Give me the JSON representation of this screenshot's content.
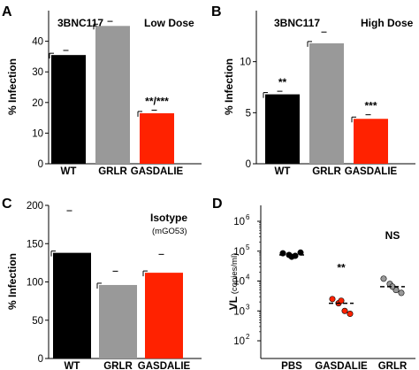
{
  "chart_data": [
    {
      "panel": "A",
      "type": "bar",
      "title": "3BNC117",
      "subtitle": "Low Dose",
      "ylabel": "% Infection",
      "ylim": [
        0,
        50
      ],
      "yticks": [
        "0",
        "10",
        "20",
        "30",
        "40"
      ],
      "categories": [
        "WT",
        "GRLR",
        "GASDALIE"
      ],
      "values": [
        35.5,
        45,
        16.5
      ],
      "errors": [
        1.5,
        1.5,
        1
      ],
      "colors": [
        "#000000",
        "#999999",
        "#ff2200"
      ],
      "annotations": [
        "",
        "",
        "**/***"
      ]
    },
    {
      "panel": "B",
      "type": "bar",
      "title": "3BNC117",
      "subtitle": "High Dose",
      "ylabel": "% Infection",
      "ylim": [
        0,
        15
      ],
      "yticks": [
        "0",
        "5",
        "10"
      ],
      "categories": [
        "WT",
        "GRLR",
        "GASDALIE"
      ],
      "values": [
        6.8,
        11.8,
        4.4
      ],
      "errors": [
        0.3,
        1.1,
        0.4
      ],
      "colors": [
        "#000000",
        "#999999",
        "#ff2200"
      ],
      "annotations": [
        "**",
        "",
        "***"
      ]
    },
    {
      "panel": "C",
      "type": "bar",
      "title": "Isotype",
      "subtitle": "(mGO53)",
      "ylabel": "% Infection",
      "ylim": [
        0,
        200
      ],
      "yticks": [
        "0",
        "50",
        "100",
        "150",
        "200"
      ],
      "categories": [
        "WT",
        "GRLR",
        "GASDALIE"
      ],
      "values": [
        138,
        96,
        112
      ],
      "errors": [
        55,
        18,
        24
      ],
      "colors": [
        "#000000",
        "#999999",
        "#ff2200"
      ],
      "annotations": [
        "",
        "",
        ""
      ]
    },
    {
      "panel": "D",
      "type": "scatter",
      "ylabel": "VL",
      "ylabel_unit": "(copies/ml)",
      "yscale": "log",
      "ylim": [
        100,
        1000000
      ],
      "yticks": [
        {
          "base": "10",
          "exp": "2",
          "value": 100
        },
        {
          "base": "10",
          "exp": "3",
          "value": 1000
        },
        {
          "base": "10",
          "exp": "4",
          "value": 10000
        },
        {
          "base": "10",
          "exp": "5",
          "value": 100000
        },
        {
          "base": "10",
          "exp": "6",
          "value": 1000000
        }
      ],
      "categories": [
        "PBS",
        "GASDALIE",
        "GRLR"
      ],
      "series": [
        {
          "color": "#000000",
          "points": [
            85000,
            75000,
            70000,
            90000,
            65000
          ]
        },
        {
          "color": "#ff2200",
          "points": [
            2500,
            1800,
            1000,
            800,
            2200
          ]
        },
        {
          "color": "#999999",
          "points": [
            12000,
            8000,
            5000,
            4000,
            6500
          ]
        }
      ],
      "medians": [
        75000,
        1800,
        6500
      ],
      "annotations": [
        "",
        "**",
        "NS"
      ]
    }
  ]
}
